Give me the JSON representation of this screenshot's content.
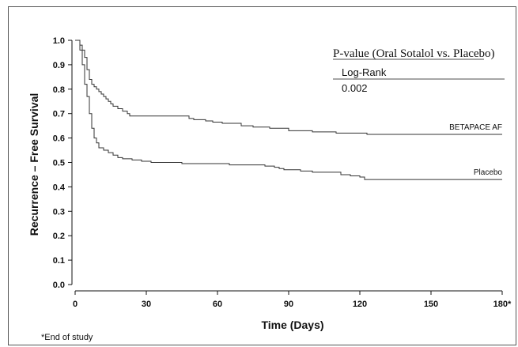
{
  "chart_data": {
    "type": "line",
    "ylabel": "Recurrence – Free Survival",
    "xlabel": "Time (Days)",
    "x_ticks": [
      "0",
      "30",
      "60",
      "90",
      "120",
      "150",
      "180*"
    ],
    "x_tick_values": [
      0,
      30,
      60,
      90,
      120,
      150,
      180
    ],
    "y_ticks": [
      "0.0",
      "0.1",
      "0.2",
      "0.3",
      "0.4",
      "0.5",
      "0.6",
      "0.7",
      "0.8",
      "0.9",
      "1.0"
    ],
    "y_tick_values": [
      0.0,
      0.1,
      0.2,
      0.3,
      0.4,
      0.5,
      0.6,
      0.7,
      0.8,
      0.9,
      1.0
    ],
    "xlim": [
      0,
      180
    ],
    "ylim": [
      0,
      1.0
    ],
    "grid": false,
    "series": [
      {
        "name": "BETAPACE AF",
        "x": [
          0,
          2,
          3,
          4,
          5,
          6,
          7,
          8,
          9,
          10,
          11,
          12,
          13,
          14,
          15,
          16,
          18,
          20,
          22,
          23,
          48,
          50,
          55,
          58,
          62,
          70,
          75,
          82,
          90,
          100,
          110,
          123,
          180
        ],
        "y": [
          1.0,
          0.98,
          0.96,
          0.93,
          0.88,
          0.84,
          0.82,
          0.81,
          0.8,
          0.79,
          0.78,
          0.77,
          0.76,
          0.75,
          0.74,
          0.73,
          0.72,
          0.71,
          0.7,
          0.69,
          0.68,
          0.675,
          0.67,
          0.665,
          0.66,
          0.65,
          0.645,
          0.64,
          0.63,
          0.625,
          0.62,
          0.615,
          0.615
        ]
      },
      {
        "name": "Placebo",
        "x": [
          0,
          2,
          3,
          4,
          5,
          6,
          7,
          8,
          9,
          10,
          12,
          14,
          16,
          18,
          20,
          24,
          28,
          32,
          45,
          55,
          65,
          80,
          84,
          86,
          88,
          95,
          100,
          112,
          116,
          120,
          122,
          180
        ],
        "y": [
          1.0,
          0.96,
          0.9,
          0.82,
          0.77,
          0.7,
          0.64,
          0.6,
          0.58,
          0.56,
          0.55,
          0.54,
          0.53,
          0.52,
          0.515,
          0.51,
          0.505,
          0.5,
          0.495,
          0.495,
          0.49,
          0.485,
          0.48,
          0.475,
          0.47,
          0.465,
          0.46,
          0.45,
          0.445,
          0.44,
          0.43,
          0.43
        ]
      }
    ]
  },
  "inset": {
    "title": "P-value (Oral Sotalol vs. Placebo)",
    "test_label": "Log-Rank",
    "p_value": "0.002"
  },
  "footnote": "*End of study"
}
